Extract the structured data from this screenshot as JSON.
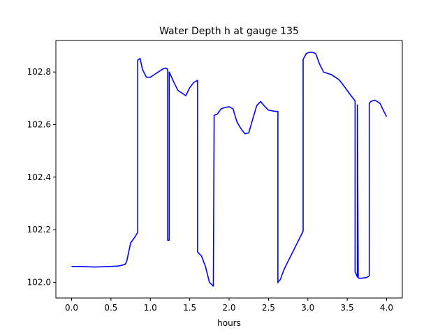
{
  "chart_data": {
    "type": "line",
    "title": "Water Depth h at gauge 135",
    "xlabel": "hours",
    "ylabel": "",
    "xlim": [
      -0.2,
      4.2
    ],
    "ylim": [
      101.94,
      102.92
    ],
    "xticks": [
      0.0,
      0.5,
      1.0,
      1.5,
      2.0,
      2.5,
      3.0,
      3.5,
      4.0
    ],
    "xtick_labels": [
      "0.0",
      "0.5",
      "1.0",
      "1.5",
      "2.0",
      "2.5",
      "3.0",
      "3.5",
      "4.0"
    ],
    "yticks": [
      102.0,
      102.2,
      102.4,
      102.6,
      102.8
    ],
    "ytick_labels": [
      "102.0",
      "102.2",
      "102.4",
      "102.6",
      "102.8"
    ],
    "grid": false,
    "series": [
      {
        "color": "#0000ff",
        "x": [
          0.0,
          0.1,
          0.2,
          0.3,
          0.4,
          0.5,
          0.6,
          0.68,
          0.7,
          0.75,
          0.8,
          0.84,
          0.84,
          0.87,
          0.9,
          0.95,
          1.0,
          1.05,
          1.1,
          1.15,
          1.2,
          1.22,
          1.22,
          1.24,
          1.24,
          1.3,
          1.35,
          1.4,
          1.45,
          1.5,
          1.55,
          1.6,
          1.6,
          1.65,
          1.7,
          1.75,
          1.8,
          1.81,
          1.85,
          1.9,
          1.95,
          2.0,
          2.05,
          2.1,
          2.15,
          2.2,
          2.25,
          2.3,
          2.35,
          2.4,
          2.45,
          2.5,
          2.55,
          2.6,
          2.62,
          2.62,
          2.62,
          2.65,
          2.7,
          2.75,
          2.8,
          2.85,
          2.9,
          2.94,
          2.94,
          2.98,
          3.02,
          3.06,
          3.1,
          3.15,
          3.2,
          3.25,
          3.3,
          3.35,
          3.4,
          3.45,
          3.5,
          3.55,
          3.6,
          3.6,
          3.63,
          3.63,
          3.64,
          3.65,
          3.7,
          3.75,
          3.78,
          3.78,
          3.8,
          3.82,
          3.85,
          3.88,
          3.92,
          3.95,
          4.0
        ],
        "y": [
          102.06,
          102.06,
          102.059,
          102.058,
          102.059,
          102.06,
          102.062,
          102.068,
          102.08,
          102.15,
          102.17,
          102.19,
          102.845,
          102.852,
          102.81,
          102.78,
          102.78,
          102.79,
          102.8,
          102.81,
          102.815,
          102.81,
          102.16,
          102.16,
          102.8,
          102.76,
          102.73,
          102.72,
          102.71,
          102.74,
          102.76,
          102.768,
          102.115,
          102.1,
          102.06,
          102.0,
          101.985,
          102.635,
          102.64,
          102.66,
          102.665,
          102.668,
          102.66,
          102.61,
          102.585,
          102.565,
          102.568,
          102.62,
          102.672,
          102.688,
          102.67,
          102.655,
          102.652,
          102.65,
          102.65,
          101.998,
          102.0,
          102.01,
          102.05,
          102.08,
          102.11,
          102.14,
          102.17,
          102.195,
          102.848,
          102.87,
          102.875,
          102.875,
          102.87,
          102.83,
          102.8,
          102.795,
          102.79,
          102.78,
          102.77,
          102.75,
          102.73,
          102.71,
          102.69,
          102.04,
          102.02,
          102.675,
          102.02,
          102.015,
          102.016,
          102.018,
          102.025,
          102.68,
          102.688,
          102.69,
          102.693,
          102.688,
          102.68,
          102.66,
          102.63
        ]
      }
    ]
  }
}
